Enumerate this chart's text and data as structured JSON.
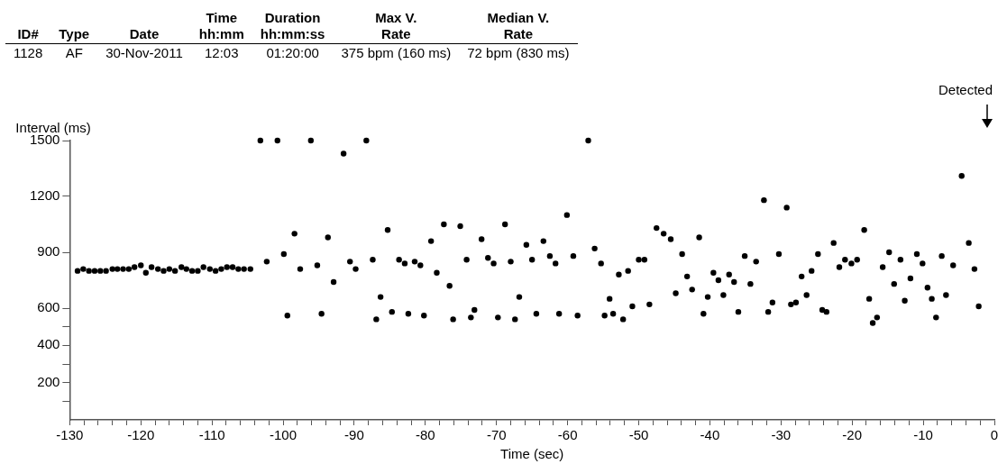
{
  "chart_data": {
    "type": "scatter",
    "annotations": [
      "ID#",
      "Type",
      "Date",
      "Time\nhh:mm",
      "Duration\nhh:mm:ss",
      "Max V.\nRate",
      "Median V.\nRate",
      "1128",
      "AF",
      "30-Nov-2011",
      "12:03",
      "01:20:00",
      "375 bpm (160 ms)",
      "72 bpm (830 ms)",
      "Detected"
    ],
    "xlabel": "Time (sec)",
    "ylabel": "Interval (ms)",
    "xlim": [
      -130,
      0
    ],
    "xticks": [
      -130,
      {
        "value": -128,
        "label": null
      },
      {
        "value": -126,
        "label": null
      },
      {
        "value": -124,
        "label": null
      },
      {
        "value": -122,
        "label": null
      },
      -120,
      {
        "value": -118,
        "label": null
      },
      {
        "value": -116,
        "label": null
      },
      {
        "value": -114,
        "label": null
      },
      {
        "value": -112,
        "label": null
      },
      -110,
      {
        "value": -108,
        "label": null
      },
      {
        "value": -106,
        "label": null
      },
      {
        "value": -104,
        "label": null
      },
      {
        "value": -102,
        "label": null
      },
      -100,
      {
        "value": -98,
        "label": null
      },
      {
        "value": -96,
        "label": null
      },
      {
        "value": -94,
        "label": null
      },
      {
        "value": -92,
        "label": null
      },
      -90,
      {
        "value": -88,
        "label": null
      },
      {
        "value": -86,
        "label": null
      },
      {
        "value": -84,
        "label": null
      },
      {
        "value": -82,
        "label": null
      },
      -80,
      {
        "value": -78,
        "label": null
      },
      {
        "value": -76,
        "label": null
      },
      {
        "value": -74,
        "label": null
      },
      {
        "value": -72,
        "label": null
      },
      -70,
      {
        "value": -68,
        "label": null
      },
      {
        "value": -66,
        "label": null
      },
      {
        "value": -64,
        "label": null
      },
      {
        "value": -62,
        "label": null
      },
      -60,
      {
        "value": -58,
        "label": null
      },
      {
        "value": -56,
        "label": null
      },
      {
        "value": -54,
        "label": null
      },
      {
        "value": -52,
        "label": null
      },
      -50,
      {
        "value": -48,
        "label": null
      },
      {
        "value": -46,
        "label": null
      },
      {
        "value": -44,
        "label": null
      },
      {
        "value": -42,
        "label": null
      },
      -40,
      {
        "value": -38,
        "label": null
      },
      {
        "value": -36,
        "label": null
      },
      {
        "value": -34,
        "label": null
      },
      {
        "value": -32,
        "label": null
      },
      -30,
      {
        "value": -28,
        "label": null
      },
      {
        "value": -26,
        "label": null
      },
      {
        "value": -24,
        "label": null
      },
      {
        "value": -22,
        "label": null
      },
      -20,
      {
        "value": -18,
        "label": null
      },
      {
        "value": -16,
        "label": null
      },
      {
        "value": -14,
        "label": null
      },
      {
        "value": -12,
        "label": null
      },
      -10,
      {
        "value": -8,
        "label": null
      },
      {
        "value": -6,
        "label": null
      },
      {
        "value": -4,
        "label": null
      },
      {
        "value": -2,
        "label": null
      },
      0
    ],
    "ylim": [
      0,
      1500
    ],
    "yticks": [
      {
        "value": 100,
        "label": null
      },
      200,
      {
        "value": 300,
        "label": null
      },
      400,
      {
        "value": 500,
        "label": null
      },
      600,
      900,
      1200,
      1500
    ],
    "grid": false,
    "legend": false,
    "marker": "circle",
    "series": [
      {
        "color": "#000000",
        "x": [
          -128.9,
          -128.1,
          -127.3,
          -126.5,
          -125.7,
          -124.9,
          -124.0,
          -123.3,
          -122.5,
          -121.7,
          -120.9,
          -120.0,
          -119.3,
          -118.5,
          -117.6,
          -116.8,
          -116.0,
          -115.2,
          -114.3,
          -113.6,
          -112.8,
          -112.0,
          -111.2,
          -110.3,
          -109.5,
          -108.7,
          -107.9,
          -107.1,
          -106.3,
          -105.5,
          -104.6,
          -103.2,
          -102.3,
          -100.8,
          -99.9,
          -99.4,
          -98.4,
          -97.6,
          -96.1,
          -95.2,
          -94.6,
          -93.7,
          -92.9,
          -91.5,
          -90.6,
          -89.8,
          -88.3,
          -87.4,
          -86.9,
          -86.3,
          -85.3,
          -84.7,
          -83.7,
          -82.9,
          -82.4,
          -81.5,
          -80.7,
          -80.2,
          -79.2,
          -78.4,
          -77.4,
          -76.6,
          -76.1,
          -75.1,
          -74.2,
          -73.6,
          -73.1,
          -72.1,
          -71.2,
          -70.4,
          -69.8,
          -68.8,
          -68.0,
          -67.4,
          -66.8,
          -65.8,
          -65.0,
          -64.4,
          -63.4,
          -62.5,
          -61.7,
          -61.2,
          -60.1,
          -59.2,
          -58.6,
          -57.1,
          -56.2,
          -55.3,
          -54.8,
          -54.1,
          -53.6,
          -52.8,
          -52.2,
          -51.5,
          -50.9,
          -50.0,
          -49.2,
          -48.5,
          -47.5,
          -46.5,
          -45.5,
          -44.8,
          -43.9,
          -43.2,
          -42.5,
          -41.5,
          -40.9,
          -40.3,
          -39.5,
          -38.8,
          -38.1,
          -37.3,
          -36.6,
          -36.0,
          -35.1,
          -34.3,
          -33.5,
          -32.4,
          -31.8,
          -31.2,
          -30.3,
          -29.2,
          -28.6,
          -27.9,
          -27.1,
          -26.4,
          -25.7,
          -24.8,
          -24.2,
          -23.6,
          -22.6,
          -21.8,
          -21.0,
          -20.1,
          -19.3,
          -18.3,
          -17.6,
          -17.1,
          -16.5,
          -15.7,
          -14.8,
          -14.1,
          -13.2,
          -12.6,
          -11.8,
          -10.9,
          -10.1,
          -9.4,
          -8.8,
          -8.2,
          -7.4,
          -6.8,
          -5.8,
          -4.6,
          -3.6,
          -2.8,
          -2.2
        ],
        "values": [
          800,
          810,
          800,
          800,
          800,
          800,
          810,
          810,
          810,
          810,
          820,
          830,
          790,
          820,
          810,
          800,
          810,
          800,
          820,
          810,
          800,
          800,
          820,
          810,
          800,
          810,
          820,
          820,
          810,
          810,
          810,
          1500,
          850,
          1500,
          890,
          560,
          1000,
          810,
          1500,
          830,
          570,
          980,
          740,
          1430,
          850,
          810,
          1500,
          860,
          540,
          660,
          1020,
          580,
          860,
          840,
          570,
          850,
          830,
          560,
          960,
          790,
          1050,
          720,
          540,
          1040,
          860,
          550,
          590,
          970,
          870,
          840,
          550,
          1050,
          850,
          540,
          660,
          940,
          860,
          570,
          960,
          880,
          840,
          570,
          1100,
          880,
          560,
          1500,
          920,
          840,
          560,
          650,
          570,
          780,
          540,
          800,
          610,
          860,
          860,
          620,
          1030,
          1000,
          970,
          680,
          890,
          770,
          700,
          980,
          570,
          660,
          790,
          750,
          670,
          780,
          740,
          580,
          880,
          730,
          850,
          1180,
          580,
          630,
          890,
          1140,
          620,
          630,
          770,
          670,
          800,
          890,
          590,
          580,
          950,
          820,
          860,
          840,
          860,
          1020,
          650,
          520,
          550,
          820,
          900,
          730,
          860,
          640,
          760,
          890,
          840,
          710,
          650,
          550,
          880,
          670,
          830,
          1310,
          950,
          810,
          610
        ]
      }
    ]
  }
}
